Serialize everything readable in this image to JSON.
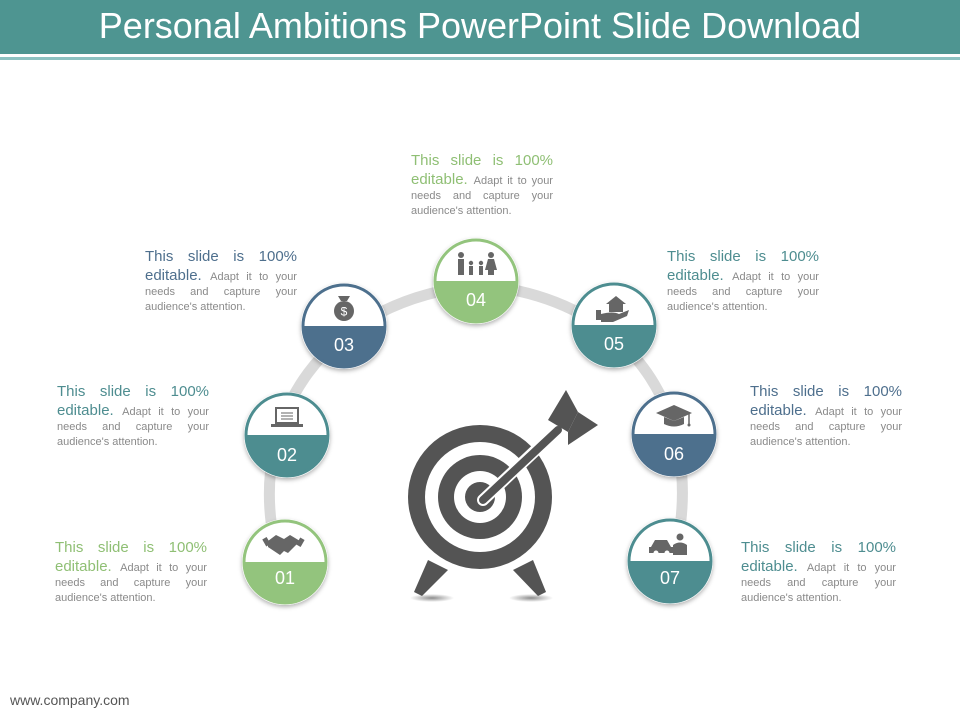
{
  "title": "Personal Ambitions PowerPoint Slide Download",
  "footer": "www.company.com",
  "colors": {
    "teal": "#4e8d90",
    "green": "#93c47d",
    "navy": "#4e6f8d",
    "header": "#4e9591"
  },
  "items": [
    {
      "number": "01",
      "icon": "handshake-icon",
      "heading": "This slide is 100% editable.",
      "body": "Adapt it to your needs and capture your audience's attention."
    },
    {
      "number": "02",
      "icon": "laptop-icon",
      "heading": "This slide is 100% editable.",
      "body": "Adapt it to your needs and capture your audience's attention."
    },
    {
      "number": "03",
      "icon": "money-bag-icon",
      "heading": "This slide is 100% editable.",
      "body": "Adapt it to your needs and capture your audience's attention."
    },
    {
      "number": "04",
      "icon": "family-icon",
      "heading": "This slide is 100% editable.",
      "body": "Adapt it to your needs and capture your audience's attention."
    },
    {
      "number": "05",
      "icon": "house-in-hand-icon",
      "heading": "This slide is 100% editable.",
      "body": "Adapt it to your needs and capture your audience's attention."
    },
    {
      "number": "06",
      "icon": "graduation-cap-icon",
      "heading": "This slide is 100% editable.",
      "body": "Adapt it to your needs and capture your audience's attention."
    },
    {
      "number": "07",
      "icon": "car-and-person-icon",
      "heading": "This slide is 100% editable.",
      "body": "Adapt it to your needs and capture your audience's attention."
    }
  ],
  "center_icon": "target-with-arrow-icon"
}
